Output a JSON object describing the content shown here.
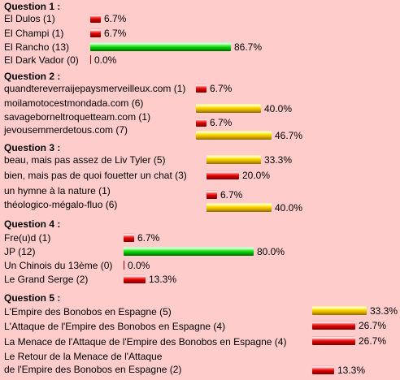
{
  "questions": [
    {
      "title": "Question 1 :",
      "options": [
        {
          "label": "El Dulos (1)",
          "percent": "6.7%",
          "value": 6.7,
          "color": "red"
        },
        {
          "label": "El Champi (1)",
          "percent": "6.7%",
          "value": 6.7,
          "color": "red"
        },
        {
          "label": "El Rancho (13)",
          "percent": "86.7%",
          "value": 86.7,
          "color": "green"
        },
        {
          "label": "El Dark Vador (0)",
          "percent": "0.0%",
          "value": 0.0,
          "color": "red"
        }
      ]
    },
    {
      "title": "Question 2 :",
      "options": [
        {
          "label": "quandtereverraijepaysmerveilleux.com (1)",
          "percent": "6.7%",
          "value": 6.7,
          "color": "red"
        },
        {
          "label": "moilamotocestmondada.com (6)",
          "percent": "40.0%",
          "value": 40.0,
          "color": "yellow"
        },
        {
          "label": "savageborneltroquetteam.com (1)",
          "percent": "6.7%",
          "value": 6.7,
          "color": "red"
        },
        {
          "label": "jevousemmerdetous.com (7)",
          "percent": "46.7%",
          "value": 46.7,
          "color": "yellow"
        }
      ]
    },
    {
      "title": "Question 3 :",
      "options": [
        {
          "label": "beau, mais pas assez de Liv Tyler (5)",
          "percent": "33.3%",
          "value": 33.3,
          "color": "yellow"
        },
        {
          "label": "bien, mais pas de quoi fouetter un chat (3)",
          "percent": "20.0%",
          "value": 20.0,
          "color": "red"
        },
        {
          "label": "un hymne à la nature (1)",
          "percent": "6.7%",
          "value": 6.7,
          "color": "red"
        },
        {
          "label": "théologico-mégalo-fluo (6)",
          "percent": "40.0%",
          "value": 40.0,
          "color": "yellow"
        }
      ]
    },
    {
      "title": "Question 4 :",
      "options": [
        {
          "label": "Fre(u)d (1)",
          "percent": "6.7%",
          "value": 6.7,
          "color": "red"
        },
        {
          "label": "JP (12)",
          "percent": "80.0%",
          "value": 80.0,
          "color": "green"
        },
        {
          "label": "Un Chinois du 13ème (0)",
          "percent": "0.0%",
          "value": 0.0,
          "color": "red"
        },
        {
          "label": "Le Grand Serge (2)",
          "percent": "13.3%",
          "value": 13.3,
          "color": "red"
        }
      ]
    },
    {
      "title": "Question 5 :",
      "options": [
        {
          "label": "L'Empire des Bonobos en Espagne (5)",
          "percent": "33.3%",
          "value": 33.3,
          "color": "yellow"
        },
        {
          "label": "L'Attaque de l'Empire des Bonobos en Espagne (4)",
          "percent": "26.7%",
          "value": 26.7,
          "color": "red"
        },
        {
          "label": "La Menace de l'Attaque de l'Empire des Bonobos en Espagne (4)",
          "percent": "26.7%",
          "value": 26.7,
          "color": "red"
        },
        {
          "label": "Le Retour de la Menace de l'Attaque",
          "label_line2": "de l'Empire des Bonobos en Espagne (2)",
          "percent": "13.3%",
          "value": 13.3,
          "color": "red"
        }
      ]
    }
  ]
}
